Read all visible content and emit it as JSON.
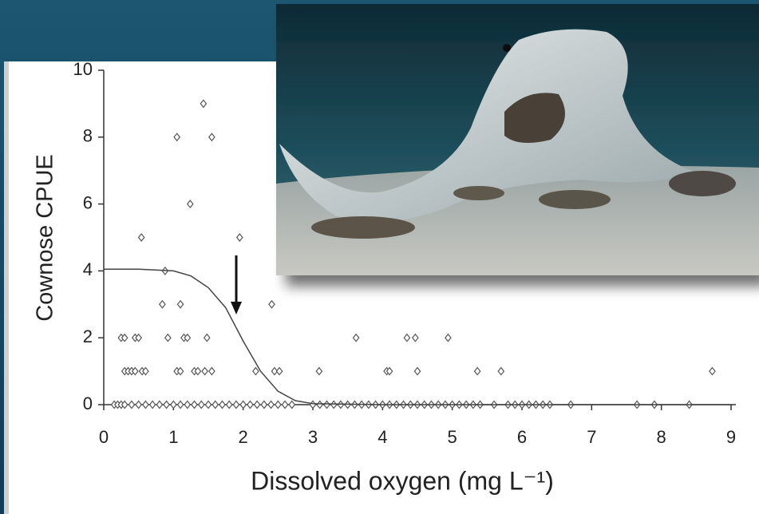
{
  "chart_data": {
    "type": "scatter",
    "x_label": "Dissolved oxygen (mg L⁻¹)",
    "y_label": "Cownose CPUE",
    "xlim": [
      0,
      9
    ],
    "xticks": [
      0,
      1,
      2,
      3,
      4,
      5,
      6,
      7,
      8,
      9
    ],
    "ylim": [
      0,
      10
    ],
    "yticks": [
      0,
      2,
      4,
      6,
      8,
      10
    ],
    "grid": false,
    "series": [
      {
        "color": "#555555",
        "marker": "diamond",
        "x": [
          1.43,
          1.05,
          1.55,
          1.24,
          0.54,
          1.95,
          0.88,
          0.84,
          1.1,
          2.41,
          0.25,
          0.3,
          0.45,
          0.5,
          0.92,
          1.15,
          1.2,
          1.48,
          3.62,
          4.35,
          4.47,
          4.94,
          0.3,
          0.35,
          0.4,
          0.45,
          0.55,
          0.6,
          1.05,
          1.1,
          1.3,
          1.35,
          1.45,
          1.55,
          2.18,
          2.45,
          2.52,
          3.09,
          4.06,
          4.1,
          4.5,
          5.36,
          5.7,
          8.73,
          0.15,
          0.2,
          0.25,
          0.3,
          0.4,
          0.5,
          0.6,
          0.7,
          0.8,
          0.9,
          1.0,
          1.1,
          1.2,
          1.3,
          1.4,
          1.5,
          1.6,
          1.7,
          1.8,
          1.9,
          2.0,
          2.1,
          2.2,
          2.3,
          2.4,
          2.5,
          2.6,
          2.7,
          3.0,
          3.1,
          3.2,
          3.3,
          3.4,
          3.5,
          3.6,
          3.7,
          3.8,
          3.9,
          4.0,
          4.1,
          4.2,
          4.3,
          4.4,
          4.5,
          4.6,
          4.7,
          4.8,
          4.9,
          5.0,
          5.1,
          5.2,
          5.3,
          5.4,
          5.6,
          5.8,
          5.9,
          6.0,
          6.1,
          6.2,
          6.3,
          6.4,
          6.7,
          7.65,
          7.9,
          8.4
        ],
        "values": [
          9,
          8,
          8,
          6,
          5,
          5,
          4,
          3,
          3,
          3,
          2,
          2,
          2,
          2,
          2,
          2,
          2,
          2,
          2,
          2,
          2,
          2,
          1,
          1,
          1,
          1,
          1,
          1,
          1,
          1,
          1,
          1,
          1,
          1,
          1,
          1,
          1,
          1,
          1,
          1,
          1,
          1,
          1,
          1,
          0,
          0,
          0,
          0,
          0,
          0,
          0,
          0,
          0,
          0,
          0,
          0,
          0,
          0,
          0,
          0,
          0,
          0,
          0,
          0,
          0,
          0,
          0,
          0,
          0,
          0,
          0,
          0,
          0,
          0,
          0,
          0,
          0,
          0,
          0,
          0,
          0,
          0,
          0,
          0,
          0,
          0,
          0,
          0,
          0,
          0,
          0,
          0,
          0,
          0,
          0,
          0,
          0,
          0,
          0,
          0,
          0,
          0,
          0,
          0,
          0,
          0,
          0,
          0,
          0
        ]
      },
      {
        "type": "line",
        "color": "#444444",
        "x": [
          0,
          0.5,
          1,
          1.25,
          1.5,
          1.75,
          2,
          2.25,
          2.5,
          2.75,
          3,
          4,
          5,
          6,
          7,
          8,
          9
        ],
        "values": [
          4.05,
          4.05,
          4.0,
          3.85,
          3.5,
          2.9,
          1.9,
          1.0,
          0.4,
          0.12,
          0.03,
          0,
          0,
          0,
          0,
          0,
          0
        ]
      }
    ]
  }
}
